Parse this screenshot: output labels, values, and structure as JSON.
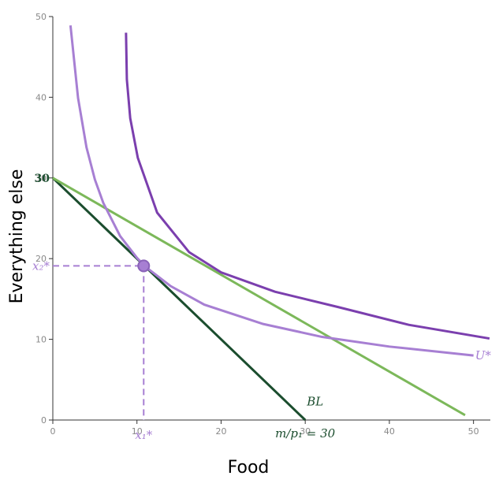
{
  "chart_data": {
    "type": "line",
    "x_label": "Food",
    "y_label": "Everything else",
    "xlim": [
      0,
      52
    ],
    "ylim": [
      0,
      50
    ],
    "xticks": [
      0,
      10,
      20,
      30,
      40,
      50
    ],
    "yticks": [
      0,
      10,
      20,
      30,
      40,
      50
    ],
    "series": [
      {
        "color": "#1b4d2e",
        "x": [
          0,
          30
        ],
        "values": [
          30,
          0
        ]
      },
      {
        "color": "#7cb85a",
        "x": [
          0,
          49
        ],
        "values": [
          30,
          0.6
        ]
      },
      {
        "color": "#a77fd3",
        "x": [
          2.1,
          3,
          4,
          5,
          6,
          8,
          10,
          11,
          14,
          18,
          25,
          32,
          40,
          50
        ],
        "values": [
          48.9,
          39.9,
          33.8,
          29.8,
          26.9,
          22.8,
          20.1,
          19.0,
          16.6,
          14.3,
          11.9,
          10.3,
          9.1,
          8.0
        ]
      },
      {
        "color": "#7b3fae",
        "x": [
          8.7,
          8.8,
          9.2,
          10.1,
          12.4,
          16.2,
          20,
          26.4,
          33.9,
          42.3,
          51.9
        ],
        "values": [
          48,
          42.2,
          37.4,
          32.5,
          25.7,
          20.8,
          18.3,
          15.9,
          14,
          11.8,
          10.1
        ]
      }
    ],
    "optimum": {
      "x": 10.8,
      "y": 19.1,
      "color": "#a77fd3"
    },
    "annotations": {
      "intercept": "30",
      "x2_label": "x₂*",
      "x1_label": "x₁*",
      "budget_label": "BL",
      "utility_label": "U*",
      "income_label": "m/p₁ = 30"
    }
  }
}
